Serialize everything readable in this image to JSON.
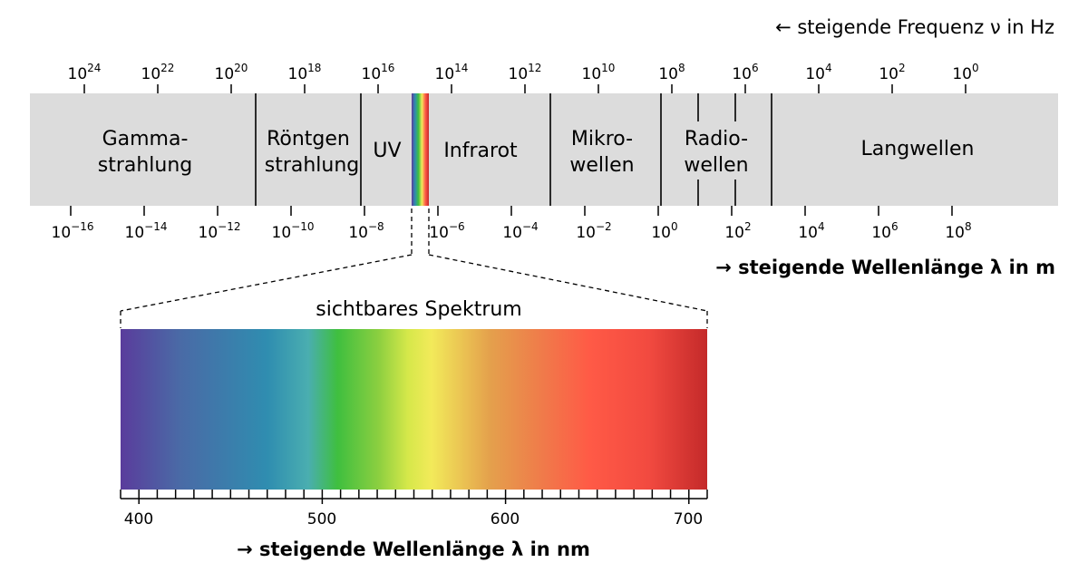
{
  "top_axis": {
    "label": "← steigende Frequenz ν in Hz",
    "ticks": [
      {
        "base": "10",
        "exp": "24"
      },
      {
        "base": "10",
        "exp": "22"
      },
      {
        "base": "10",
        "exp": "20"
      },
      {
        "base": "10",
        "exp": "18"
      },
      {
        "base": "10",
        "exp": "16"
      },
      {
        "base": "10",
        "exp": "14"
      },
      {
        "base": "10",
        "exp": "12"
      },
      {
        "base": "10",
        "exp": "10"
      },
      {
        "base": "10",
        "exp": "8"
      },
      {
        "base": "10",
        "exp": "6"
      },
      {
        "base": "10",
        "exp": "4"
      },
      {
        "base": "10",
        "exp": "2"
      },
      {
        "base": "10",
        "exp": "0"
      }
    ]
  },
  "bottom_axis": {
    "label": "→ steigende Wellenlänge λ in m",
    "ticks": [
      {
        "base": "10",
        "exp": "−16"
      },
      {
        "base": "10",
        "exp": "−14"
      },
      {
        "base": "10",
        "exp": "−12"
      },
      {
        "base": "10",
        "exp": "−10"
      },
      {
        "base": "10",
        "exp": "−8"
      },
      {
        "base": "10",
        "exp": "−6"
      },
      {
        "base": "10",
        "exp": "−4"
      },
      {
        "base": "10",
        "exp": "−2"
      },
      {
        "base": "10",
        "exp": "0"
      },
      {
        "base": "10",
        "exp": "2"
      },
      {
        "base": "10",
        "exp": "4"
      },
      {
        "base": "10",
        "exp": "6"
      },
      {
        "base": "10",
        "exp": "8"
      }
    ]
  },
  "bands": [
    {
      "name": "gamma",
      "lines": [
        "Gamma-",
        "strahlung"
      ]
    },
    {
      "name": "roentgen",
      "lines": [
        "Röntgen",
        "strahlung"
      ]
    },
    {
      "name": "uv",
      "lines": [
        "UV"
      ]
    },
    {
      "name": "infrarot",
      "lines": [
        "Infrarot"
      ]
    },
    {
      "name": "mikrowellen",
      "lines": [
        "Mikro-",
        "wellen"
      ]
    },
    {
      "name": "radiowellen",
      "lines": [
        "Radio-",
        "wellen"
      ]
    },
    {
      "name": "langwellen",
      "lines": [
        "Langwellen"
      ]
    }
  ],
  "visible": {
    "title": "sichtbares Spektrum",
    "axis_label": "→ steigende Wellenlänge λ in nm",
    "ticks": [
      "400",
      "500",
      "600",
      "700"
    ],
    "range_nm": [
      390,
      710
    ],
    "colors": [
      "#5a3c9c",
      "#4a6aa6",
      "#2f8db0",
      "#4aaeb0",
      "#3fbf3f",
      "#8ccf40",
      "#d6e84a",
      "#f2ea5a",
      "#e4a04c",
      "#f07a4a",
      "#ff5a46",
      "#f24a40",
      "#c42a2a"
    ]
  },
  "band_background": "#dcdcdc"
}
